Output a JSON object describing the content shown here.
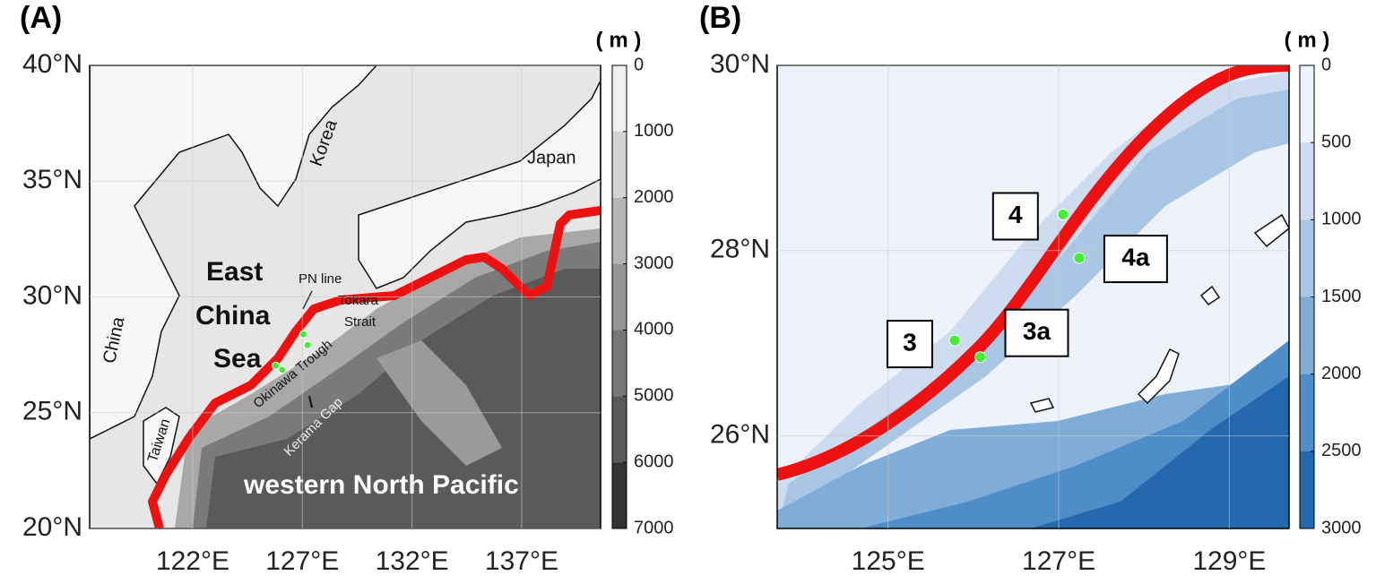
{
  "panels": [
    {
      "label": "(A)",
      "unit": "( m )",
      "xlim": [
        117.3,
        140.6
      ],
      "ylim": [
        20,
        40
      ],
      "lat_ticks": [
        {
          "value": 20,
          "label": "20°N"
        },
        {
          "value": 25,
          "label": "25°N"
        },
        {
          "value": 30,
          "label": "30°N"
        },
        {
          "value": 35,
          "label": "35°N"
        },
        {
          "value": 40,
          "label": "40°N"
        }
      ],
      "lon_ticks": [
        {
          "value": 122,
          "label": "122°E"
        },
        {
          "value": 127,
          "label": "127°E"
        },
        {
          "value": 132,
          "label": "132°E"
        },
        {
          "value": 137,
          "label": "137°E"
        }
      ],
      "colorbar_ticks": [
        0,
        1000,
        2000,
        3000,
        4000,
        5000,
        6000,
        7000
      ],
      "places": [
        "East",
        "China",
        "Sea",
        "China",
        "Korea",
        "Japan",
        "Taiwan",
        "PN line",
        "Tokara",
        "Strait",
        "Okinawa Trough",
        "Kerama Gap",
        "western North Pacific"
      ]
    },
    {
      "label": "(B)",
      "unit": "( m )",
      "xlim": [
        123.7,
        129.7
      ],
      "ylim": [
        25,
        30
      ],
      "lat_ticks": [
        {
          "value": 26,
          "label": "26°N"
        },
        {
          "value": 28,
          "label": "28°N"
        },
        {
          "value": 30,
          "label": "30°N"
        }
      ],
      "lon_ticks": [
        {
          "value": 125,
          "label": "125°E"
        },
        {
          "value": 127,
          "label": "127°E"
        },
        {
          "value": 129,
          "label": "129°E"
        }
      ],
      "colorbar_ticks": [
        0,
        500,
        1000,
        1500,
        2000,
        2500,
        3000
      ],
      "stations": [
        {
          "name": "4",
          "lon": 127.05,
          "lat": 28.39
        },
        {
          "name": "4a",
          "lon": 127.24,
          "lat": 27.92
        },
        {
          "name": "3",
          "lon": 125.78,
          "lat": 27.03
        },
        {
          "name": "3a",
          "lon": 126.08,
          "lat": 26.85
        }
      ]
    }
  ]
}
